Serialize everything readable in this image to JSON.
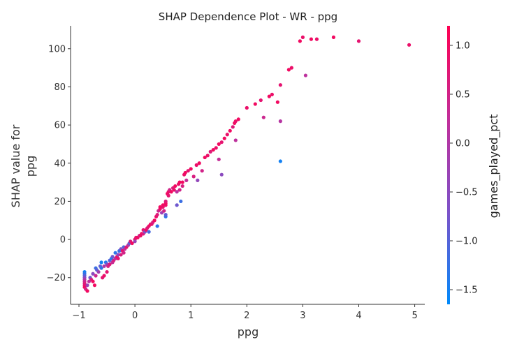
{
  "chart_data": {
    "type": "scatter",
    "title": "SHAP Dependence Plot - WR - ppg",
    "xlabel": "ppg",
    "ylabel_lines": [
      "SHAP value for",
      "ppg"
    ],
    "xlim": [
      -1.15,
      5.18
    ],
    "ylim": [
      -34,
      112
    ],
    "x_ticks": [
      -1,
      0,
      1,
      2,
      3,
      4,
      5
    ],
    "x_tick_labels": [
      "−1",
      "0",
      "1",
      "2",
      "3",
      "4",
      "5"
    ],
    "y_ticks": [
      -20,
      0,
      20,
      40,
      60,
      80,
      100
    ],
    "y_tick_labels": [
      "−20",
      "0",
      "20",
      "40",
      "60",
      "80",
      "100"
    ],
    "grid": false,
    "colorbar": {
      "label": "games_played_pct",
      "range": [
        -1.65,
        1.2
      ],
      "ticks": [
        1.0,
        0.5,
        0.0,
        -0.5,
        -1.0,
        -1.5
      ],
      "tick_labels": [
        "1.0",
        "0.5",
        "0.0",
        "−0.5",
        "−1.0",
        "−1.5"
      ],
      "colors": [
        "#008afb",
        "#7c52c9",
        "#c12f9b",
        "#ff0052"
      ]
    },
    "points": [
      [
        -0.9,
        -17,
        -1.5
      ],
      [
        -0.9,
        -18,
        -1.3
      ],
      [
        -0.9,
        -19,
        -1.0
      ],
      [
        -0.9,
        -20,
        -0.6
      ],
      [
        -0.9,
        -21,
        0.0
      ],
      [
        -0.9,
        -22,
        0.4
      ],
      [
        -0.9,
        -23,
        0.6
      ],
      [
        -0.9,
        -24,
        0.8
      ],
      [
        -0.9,
        -25,
        1.0
      ],
      [
        -0.88,
        -26,
        0.5
      ],
      [
        -0.85,
        -24,
        -0.3
      ],
      [
        -0.85,
        -27,
        1.0
      ],
      [
        -0.82,
        -22,
        0.2
      ],
      [
        -0.8,
        -20,
        -0.8
      ],
      [
        -0.78,
        -21,
        0.6
      ],
      [
        -0.75,
        -22,
        1.0
      ],
      [
        -0.75,
        -18,
        -0.5
      ],
      [
        -0.72,
        -24,
        1.0
      ],
      [
        -0.7,
        -15,
        -1.2
      ],
      [
        -0.7,
        -19,
        0.4
      ],
      [
        -0.68,
        -16,
        -0.9
      ],
      [
        -0.65,
        -17,
        -0.2
      ],
      [
        -0.62,
        -14,
        -0.9
      ],
      [
        -0.6,
        -15,
        -1.3
      ],
      [
        -0.6,
        -12,
        -1.5
      ],
      [
        -0.58,
        -20,
        0.8
      ],
      [
        -0.55,
        -19,
        0.9
      ],
      [
        -0.55,
        -14,
        0.0
      ],
      [
        -0.52,
        -12,
        -1.4
      ],
      [
        -0.5,
        -17,
        0.8
      ],
      [
        -0.5,
        -13,
        -0.6
      ],
      [
        -0.48,
        -14,
        0.5
      ],
      [
        -0.45,
        -11,
        -1.0
      ],
      [
        -0.45,
        -13,
        0.7
      ],
      [
        -0.42,
        -10,
        -1.4
      ],
      [
        -0.4,
        -12,
        0.3
      ],
      [
        -0.4,
        -9,
        -0.8
      ],
      [
        -0.38,
        -11,
        0.6
      ],
      [
        -0.35,
        -10,
        0.2
      ],
      [
        -0.35,
        -7,
        -1.3
      ],
      [
        -0.32,
        -9,
        0.9
      ],
      [
        -0.3,
        -8,
        -0.4
      ],
      [
        -0.3,
        -10,
        0.8
      ],
      [
        -0.28,
        -6,
        -1.2
      ],
      [
        -0.25,
        -8,
        0.6
      ],
      [
        -0.25,
        -5,
        -0.7
      ],
      [
        -0.22,
        -6,
        0.9
      ],
      [
        -0.2,
        -4,
        -1.0
      ],
      [
        -0.2,
        -7,
        0.5
      ],
      [
        -0.18,
        -5,
        0.3
      ],
      [
        -0.15,
        -4,
        0.8
      ],
      [
        -0.12,
        -3,
        0.1
      ],
      [
        -0.1,
        -2,
        -0.9
      ],
      [
        -0.08,
        -1,
        0.7
      ],
      [
        -0.05,
        -2,
        1.0
      ],
      [
        0.0,
        0,
        0.9
      ],
      [
        0.0,
        -1,
        -0.3
      ],
      [
        0.02,
        1,
        0.8
      ],
      [
        0.05,
        1,
        1.0
      ],
      [
        0.08,
        2,
        0.4
      ],
      [
        0.1,
        2,
        0.9
      ],
      [
        0.12,
        3,
        1.0
      ],
      [
        0.15,
        3,
        0.6
      ],
      [
        0.15,
        5,
        0.8
      ],
      [
        0.18,
        4,
        -0.6
      ],
      [
        0.2,
        5,
        1.0
      ],
      [
        0.22,
        6,
        0.7
      ],
      [
        0.25,
        7,
        0.9
      ],
      [
        0.25,
        4,
        -1.1
      ],
      [
        0.28,
        8,
        1.0
      ],
      [
        0.3,
        8,
        0.8
      ],
      [
        0.32,
        9,
        0.6
      ],
      [
        0.35,
        10,
        1.0
      ],
      [
        0.38,
        12,
        0.9
      ],
      [
        0.4,
        7,
        -1.3
      ],
      [
        0.4,
        13,
        0.7
      ],
      [
        0.42,
        15,
        0.4
      ],
      [
        0.45,
        16,
        0.9
      ],
      [
        0.45,
        17,
        1.0
      ],
      [
        0.48,
        14,
        -0.2
      ],
      [
        0.5,
        17,
        0.8
      ],
      [
        0.5,
        18,
        1.0
      ],
      [
        0.52,
        15,
        0.5
      ],
      [
        0.55,
        18,
        0.9
      ],
      [
        0.55,
        19,
        1.0
      ],
      [
        0.55,
        20,
        0.7
      ],
      [
        0.55,
        12,
        -1.3
      ],
      [
        0.55,
        13,
        -0.9
      ],
      [
        0.58,
        24,
        1.0
      ],
      [
        0.6,
        23,
        0.8
      ],
      [
        0.6,
        25,
        0.9
      ],
      [
        0.62,
        26,
        0.5
      ],
      [
        0.65,
        25,
        1.0
      ],
      [
        0.68,
        27,
        0.7
      ],
      [
        0.7,
        26,
        0.9
      ],
      [
        0.72,
        28,
        1.0
      ],
      [
        0.75,
        18,
        -0.8
      ],
      [
        0.75,
        25,
        0.2
      ],
      [
        0.78,
        29,
        0.9
      ],
      [
        0.8,
        30,
        1.0
      ],
      [
        0.8,
        26,
        0.5
      ],
      [
        0.82,
        20,
        -1.2
      ],
      [
        0.85,
        28,
        0.6
      ],
      [
        0.85,
        30,
        1.0
      ],
      [
        0.88,
        34,
        0.9
      ],
      [
        0.9,
        35,
        1.0
      ],
      [
        0.92,
        31,
        0.3
      ],
      [
        0.95,
        36,
        0.8
      ],
      [
        1.0,
        37,
        1.0
      ],
      [
        1.05,
        33,
        0.6
      ],
      [
        1.1,
        39,
        0.9
      ],
      [
        1.12,
        31,
        -0.4
      ],
      [
        1.15,
        40,
        1.0
      ],
      [
        1.2,
        36,
        0.5
      ],
      [
        1.25,
        43,
        1.0
      ],
      [
        1.3,
        44,
        0.9
      ],
      [
        1.35,
        46,
        0.7
      ],
      [
        1.4,
        47,
        1.0
      ],
      [
        1.45,
        48,
        0.9
      ],
      [
        1.5,
        42,
        0.3
      ],
      [
        1.5,
        50,
        1.0
      ],
      [
        1.55,
        34,
        -0.5
      ],
      [
        1.55,
        51,
        0.8
      ],
      [
        1.6,
        53,
        1.0
      ],
      [
        1.65,
        55,
        0.9
      ],
      [
        1.7,
        57,
        1.0
      ],
      [
        1.75,
        59,
        0.7
      ],
      [
        1.78,
        61,
        1.0
      ],
      [
        1.8,
        62,
        0.9
      ],
      [
        1.8,
        52,
        0.2
      ],
      [
        1.85,
        63,
        1.0
      ],
      [
        2.0,
        69,
        0.9
      ],
      [
        2.15,
        71,
        1.0
      ],
      [
        2.25,
        73,
        0.8
      ],
      [
        2.3,
        64,
        0.4
      ],
      [
        2.4,
        75,
        1.0
      ],
      [
        2.45,
        76,
        0.9
      ],
      [
        2.55,
        72,
        1.0
      ],
      [
        2.6,
        81,
        0.8
      ],
      [
        2.6,
        62,
        0.1
      ],
      [
        2.6,
        41,
        -1.5
      ],
      [
        2.75,
        89,
        1.0
      ],
      [
        2.8,
        90,
        0.9
      ],
      [
        2.95,
        104,
        1.0
      ],
      [
        3.0,
        106,
        0.9
      ],
      [
        3.05,
        86,
        0.2
      ],
      [
        3.15,
        105,
        1.0
      ],
      [
        3.25,
        105,
        0.9
      ],
      [
        3.55,
        106,
        1.0
      ],
      [
        4.0,
        104,
        0.8
      ],
      [
        4.9,
        102,
        0.9
      ]
    ]
  }
}
